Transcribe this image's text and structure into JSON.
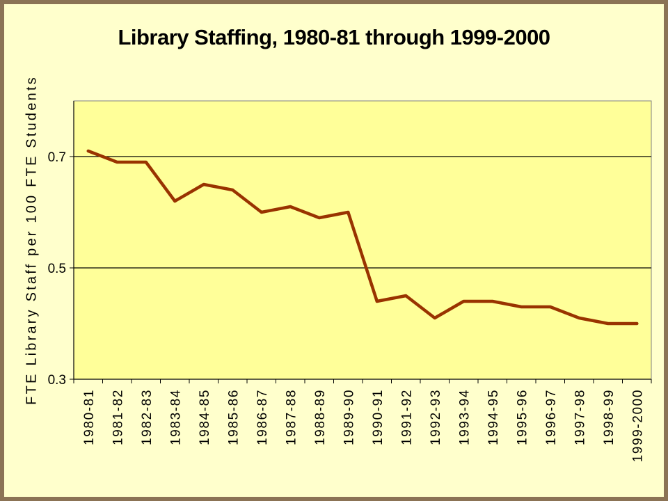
{
  "chart_data": {
    "type": "line",
    "title": "Library Staffing, 1980-81 through 1999-2000",
    "xlabel": "",
    "ylabel": "FTE Library Staff per 100 FTE Students",
    "categories": [
      "1980-81",
      "1981-82",
      "1982-83",
      "1983-84",
      "1984-85",
      "1985-86",
      "1986-87",
      "1987-88",
      "1988-89",
      "1989-90",
      "1990-91",
      "1991-92",
      "1992-93",
      "1993-94",
      "1994-95",
      "1995-96",
      "1996-97",
      "1997-98",
      "1998-99",
      "1999-2000"
    ],
    "series": [
      {
        "values": [
          0.71,
          0.69,
          0.69,
          0.62,
          0.65,
          0.64,
          0.6,
          0.61,
          0.59,
          0.6,
          0.44,
          0.45,
          0.41,
          0.44,
          0.44,
          0.43,
          0.43,
          0.41,
          0.4,
          0.4
        ],
        "color": "#993300"
      }
    ],
    "ylim": [
      0.3,
      0.8
    ],
    "yticks": [
      0.3,
      0.5,
      0.7
    ],
    "ytick_labels": [
      "0.3",
      "0.5",
      "0.7"
    ],
    "grid": true,
    "plot_background": "#FFFF99"
  }
}
